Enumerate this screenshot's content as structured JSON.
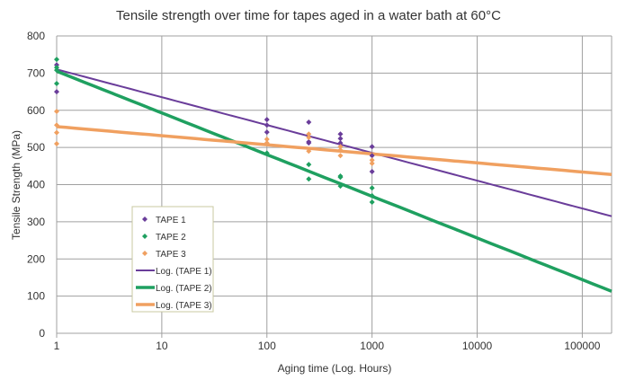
{
  "chart_data": {
    "type": "scatter",
    "title": "Tensile strength over time for tapes aged in a water bath at 60°C",
    "xlabel": "Aging time (Log. Hours)",
    "ylabel": "Tensile Strength (MPa)",
    "xscale": "log",
    "xlim": [
      1,
      190000
    ],
    "ylim": [
      0,
      800
    ],
    "xticks": [
      1,
      10,
      100,
      1000,
      10000,
      100000
    ],
    "yticks": [
      0,
      100,
      200,
      300,
      400,
      500,
      600,
      700,
      800
    ],
    "grid": true,
    "legend_position": "lower-left inside",
    "series": [
      {
        "name": "TAPE 1",
        "color": "#6a3d9a",
        "points": [
          [
            1,
            722
          ],
          [
            1,
            650
          ],
          [
            100,
            575
          ],
          [
            100,
            560
          ],
          [
            100,
            541
          ],
          [
            250,
            568
          ],
          [
            250,
            515
          ],
          [
            250,
            512
          ],
          [
            500,
            536
          ],
          [
            500,
            524
          ],
          [
            500,
            512
          ],
          [
            1000,
            502
          ],
          [
            1000,
            478
          ],
          [
            1000,
            435
          ]
        ]
      },
      {
        "name": "TAPE 2",
        "color": "#1fa060",
        "points": [
          [
            1,
            737
          ],
          [
            1,
            715
          ],
          [
            1,
            708
          ],
          [
            1,
            672
          ],
          [
            100,
            485
          ],
          [
            250,
            454
          ],
          [
            250,
            415
          ],
          [
            500,
            423
          ],
          [
            500,
            420
          ],
          [
            500,
            396
          ],
          [
            1000,
            391
          ],
          [
            1000,
            370
          ],
          [
            1000,
            353
          ]
        ]
      },
      {
        "name": "TAPE 3",
        "color": "#f0a060",
        "points": [
          [
            1,
            597
          ],
          [
            1,
            560
          ],
          [
            1,
            540
          ],
          [
            1,
            510
          ],
          [
            100,
            522
          ],
          [
            100,
            512
          ],
          [
            250,
            536
          ],
          [
            250,
            527
          ],
          [
            250,
            490
          ],
          [
            500,
            502
          ],
          [
            500,
            493
          ],
          [
            500,
            478
          ],
          [
            1000,
            466
          ],
          [
            1000,
            457
          ]
        ]
      }
    ],
    "trendlines": [
      {
        "name": "Log. (TAPE 1)",
        "color": "#6a3d9a",
        "type": "log",
        "a": -32.5,
        "b": 710,
        "width": 2
      },
      {
        "name": "Log. (TAPE 2)",
        "color": "#1fa060",
        "type": "log",
        "a": -48.7,
        "b": 705,
        "width": 3.5
      },
      {
        "name": "Log. (TAPE 3)",
        "color": "#f0a060",
        "type": "log",
        "a": -10.6,
        "b": 556,
        "width": 3.5
      }
    ]
  }
}
